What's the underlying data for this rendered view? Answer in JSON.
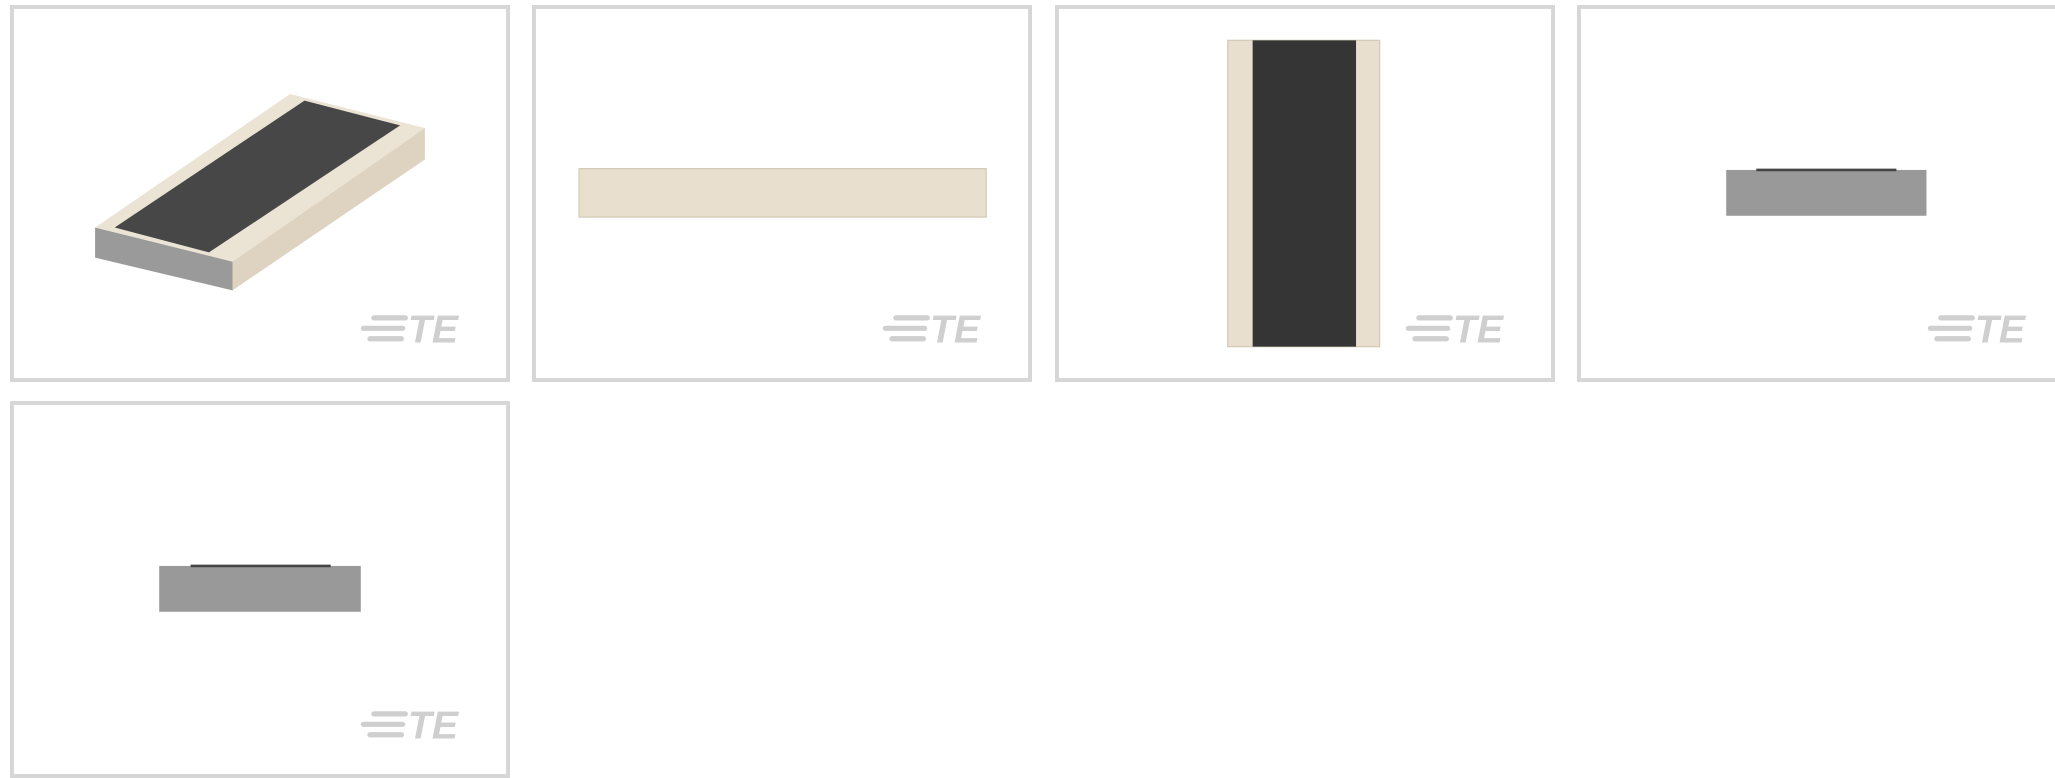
{
  "tiles": [
    {
      "logo": "TE"
    },
    {
      "logo": "TE"
    },
    {
      "logo": "TE"
    },
    {
      "logo": "TE"
    },
    {
      "logo": "TE"
    }
  ]
}
